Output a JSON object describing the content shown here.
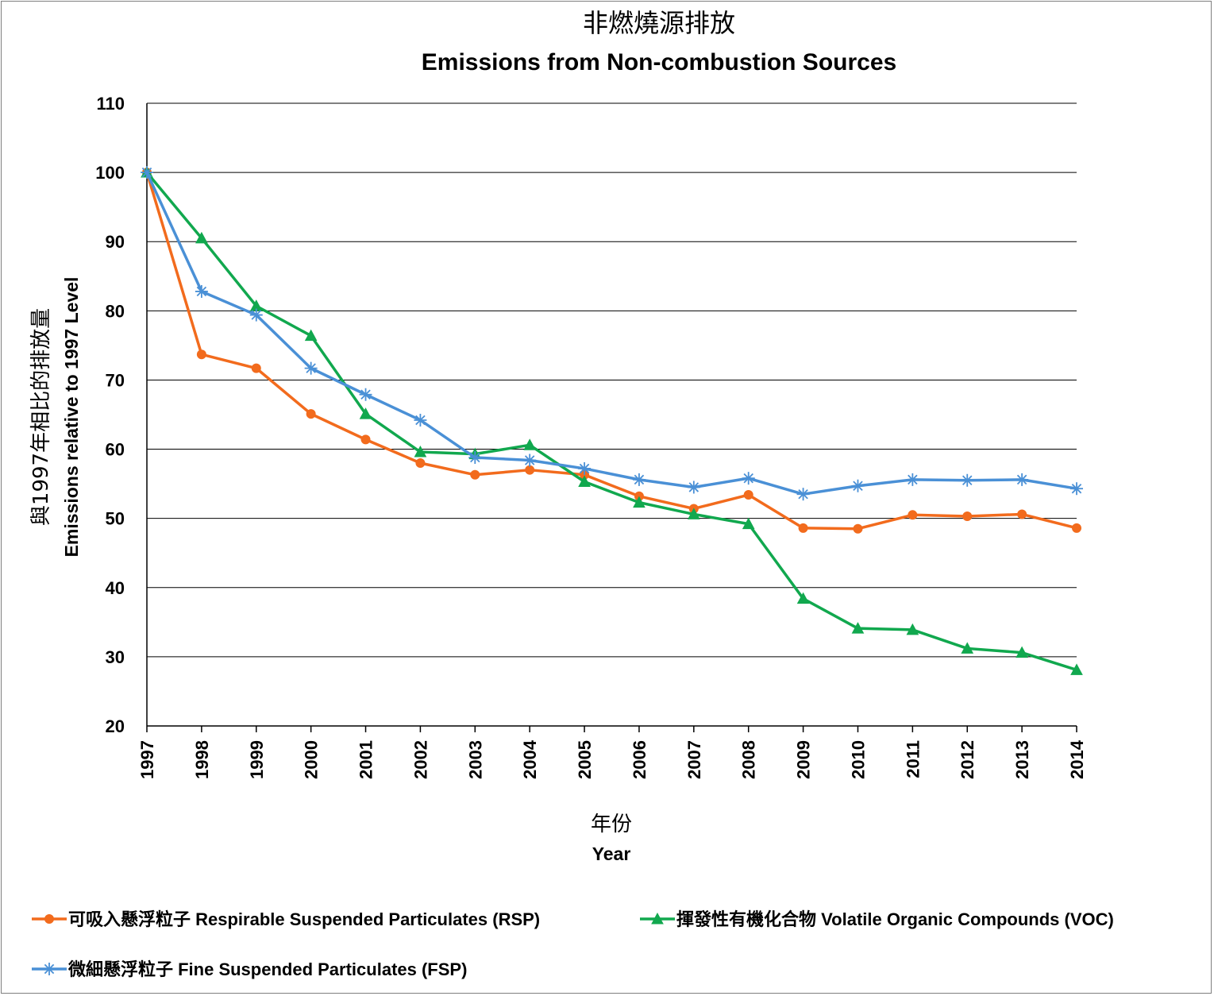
{
  "chart_data": {
    "type": "line",
    "title_zh": "非燃燒源排放",
    "title": "Emissions from Non-combustion Sources",
    "ylabel_zh": "與1997年相比的排放量",
    "ylabel": "Emissions relative to 1997 Level",
    "xlabel_zh": "年份",
    "xlabel": "Year",
    "ylim": [
      20,
      110
    ],
    "yticks": [
      "20",
      "30",
      "40",
      "50",
      "60",
      "70",
      "80",
      "90",
      "100",
      "110"
    ],
    "grid": true,
    "legend_position": "bottom",
    "categories": [
      "1997",
      "1998",
      "1999",
      "2000",
      "2001",
      "2002",
      "2003",
      "2004",
      "2005",
      "2006",
      "2007",
      "2008",
      "2009",
      "2010",
      "2011",
      "2012",
      "2013",
      "2014"
    ],
    "series": [
      {
        "name": "可吸入懸浮粒子 Respirable Suspended Particulates (RSP)",
        "color": "#f26b1d",
        "marker": "circle",
        "values": [
          100,
          73.7,
          71.7,
          65.1,
          61.4,
          58.0,
          56.3,
          57.0,
          56.3,
          53.2,
          51.4,
          53.4,
          48.6,
          48.5,
          50.5,
          50.3,
          50.6,
          48.6
        ]
      },
      {
        "name": "揮發性有機化合物 Volatile Organic Compounds (VOC)",
        "color": "#11a84e",
        "marker": "triangle",
        "values": [
          100,
          90.5,
          80.7,
          76.4,
          65.1,
          59.6,
          59.3,
          60.6,
          55.3,
          52.3,
          50.6,
          49.2,
          38.4,
          34.1,
          33.9,
          31.2,
          30.6,
          28.1
        ]
      },
      {
        "name": "微細懸浮粒子 Fine Suspended Particulates (FSP)",
        "color": "#4a90d6",
        "marker": "star",
        "values": [
          100,
          82.8,
          79.4,
          71.7,
          67.9,
          64.2,
          58.8,
          58.4,
          57.2,
          55.6,
          54.5,
          55.8,
          53.5,
          54.7,
          55.6,
          55.5,
          55.6,
          54.3
        ]
      }
    ]
  }
}
